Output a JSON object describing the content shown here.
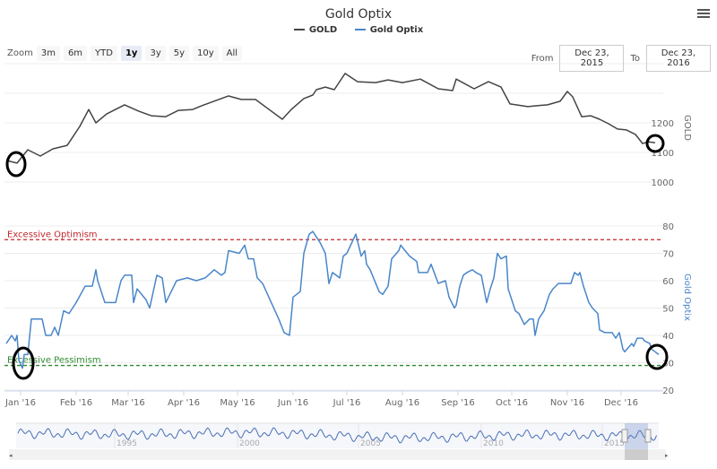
{
  "title": "Gold Optix",
  "legend": [
    {
      "name": "GOLD",
      "color": "#444444"
    },
    {
      "name": "Gold Optix",
      "color": "#4a86c8"
    }
  ],
  "toolbar": {
    "zoom_label": "Zoom",
    "zoom_buttons": [
      "3m",
      "6m",
      "YTD",
      "1y",
      "3y",
      "5y",
      "10y",
      "All"
    ],
    "selected": "1y",
    "from_label": "From",
    "from_value": "Dec 23, 2015",
    "to_label": "To",
    "to_value": "Dec 23, 2016",
    "menu_icon": "hamburger-menu-icon"
  },
  "chart_data": [
    {
      "type": "line",
      "title": "Gold Optix",
      "ylabel": "GOLD",
      "ylim": [
        1000,
        1400
      ],
      "yticks": [
        "1000",
        "1100",
        "1200"
      ],
      "grid": true,
      "series": [
        {
          "name": "GOLD",
          "color": "#444444",
          "points": [
            [
              "2015-12-24",
              1073
            ],
            [
              "2015-12-30",
              1064
            ],
            [
              "2016-01-05",
              1109
            ],
            [
              "2016-01-12",
              1088
            ],
            [
              "2016-01-19",
              1112
            ],
            [
              "2016-01-27",
              1124
            ],
            [
              "2016-02-03",
              1188
            ],
            [
              "2016-02-08",
              1245
            ],
            [
              "2016-02-12",
              1200
            ],
            [
              "2016-02-18",
              1230
            ],
            [
              "2016-02-28",
              1261
            ],
            [
              "2016-03-07",
              1239
            ],
            [
              "2016-03-14",
              1224
            ],
            [
              "2016-03-22",
              1221
            ],
            [
              "2016-03-29",
              1242
            ],
            [
              "2016-04-06",
              1245
            ],
            [
              "2016-04-11",
              1258
            ],
            [
              "2016-04-26",
              1291
            ],
            [
              "2016-05-03",
              1279
            ],
            [
              "2016-05-11",
              1279
            ],
            [
              "2016-05-18",
              1248
            ],
            [
              "2016-05-26",
              1212
            ],
            [
              "2016-05-31",
              1245
            ],
            [
              "2016-06-07",
              1282
            ],
            [
              "2016-06-12",
              1294
            ],
            [
              "2016-06-14",
              1312
            ],
            [
              "2016-06-19",
              1321
            ],
            [
              "2016-06-24",
              1312
            ],
            [
              "2016-06-30",
              1367
            ],
            [
              "2016-07-07",
              1339
            ],
            [
              "2016-07-17",
              1336
            ],
            [
              "2016-07-24",
              1345
            ],
            [
              "2016-08-01",
              1336
            ],
            [
              "2016-08-11",
              1348
            ],
            [
              "2016-08-21",
              1315
            ],
            [
              "2016-08-29",
              1309
            ],
            [
              "2016-08-31",
              1348
            ],
            [
              "2016-09-10",
              1315
            ],
            [
              "2016-09-18",
              1339
            ],
            [
              "2016-09-25",
              1321
            ],
            [
              "2016-09-30",
              1264
            ],
            [
              "2016-10-10",
              1255
            ],
            [
              "2016-10-15",
              1258
            ],
            [
              "2016-10-21",
              1261
            ],
            [
              "2016-10-28",
              1273
            ],
            [
              "2016-11-01",
              1306
            ],
            [
              "2016-11-04",
              1288
            ],
            [
              "2016-11-09",
              1221
            ],
            [
              "2016-11-14",
              1224
            ],
            [
              "2016-11-19",
              1212
            ],
            [
              "2016-11-24",
              1197
            ],
            [
              "2016-11-29",
              1179
            ],
            [
              "2016-12-04",
              1176
            ],
            [
              "2016-12-09",
              1161
            ],
            [
              "2016-12-13",
              1130
            ],
            [
              "2016-12-16",
              1136
            ],
            [
              "2016-12-20",
              1133
            ]
          ]
        }
      ]
    },
    {
      "type": "line",
      "ylabel": "Gold Optix",
      "ylim": [
        20,
        80
      ],
      "yticks": [
        "20",
        "30",
        "40",
        "50",
        "60",
        "70",
        "80"
      ],
      "grid": true,
      "xticks": [
        "Jan '16",
        "Feb '16",
        "Mar '16",
        "Apr '16",
        "May '16",
        "Jun '16",
        "Jul '16",
        "Aug '16",
        "Sep '16",
        "Oct '16",
        "Nov '16",
        "Dec '16"
      ],
      "xtick_dates": [
        "2016-01-01",
        "2016-02-01",
        "2016-03-01",
        "2016-04-01",
        "2016-05-01",
        "2016-06-01",
        "2016-07-01",
        "2016-08-01",
        "2016-09-01",
        "2016-10-01",
        "2016-11-01",
        "2016-12-01"
      ],
      "plot_lines": [
        {
          "label": "Excessive Optimism",
          "value": 75,
          "color": "#c0282d"
        },
        {
          "label": "Excessive Pessimism",
          "value": 29,
          "color": "#2e8b2e"
        }
      ],
      "series": [
        {
          "name": "Gold Optix",
          "color": "#4a86c8",
          "points": [
            [
              "2015-12-24",
              37
            ],
            [
              "2015-12-27",
              40
            ],
            [
              "2015-12-29",
              38
            ],
            [
              "2015-12-30",
              40
            ],
            [
              "2015-12-31",
              31
            ],
            [
              "2016-01-02",
              28
            ],
            [
              "2016-01-03",
              33
            ],
            [
              "2016-01-05",
              33
            ],
            [
              "2016-01-07",
              46
            ],
            [
              "2016-01-13",
              46
            ],
            [
              "2016-01-15",
              40
            ],
            [
              "2016-01-18",
              40
            ],
            [
              "2016-01-20",
              43
            ],
            [
              "2016-01-22",
              40
            ],
            [
              "2016-01-25",
              49
            ],
            [
              "2016-01-28",
              48
            ],
            [
              "2016-02-01",
              52
            ],
            [
              "2016-02-06",
              58
            ],
            [
              "2016-02-10",
              58
            ],
            [
              "2016-02-12",
              64
            ],
            [
              "2016-02-13",
              60
            ],
            [
              "2016-02-17",
              52
            ],
            [
              "2016-02-23",
              52
            ],
            [
              "2016-02-26",
              60
            ],
            [
              "2016-02-28",
              62
            ],
            [
              "2016-03-03",
              62
            ],
            [
              "2016-03-04",
              52
            ],
            [
              "2016-03-06",
              57
            ],
            [
              "2016-03-11",
              53
            ],
            [
              "2016-03-13",
              50
            ],
            [
              "2016-03-17",
              62
            ],
            [
              "2016-03-20",
              61
            ],
            [
              "2016-03-22",
              52
            ],
            [
              "2016-03-25",
              56
            ],
            [
              "2016-03-28",
              60
            ],
            [
              "2016-04-03",
              61
            ],
            [
              "2016-04-08",
              60
            ],
            [
              "2016-04-13",
              61
            ],
            [
              "2016-04-18",
              64
            ],
            [
              "2016-04-22",
              62
            ],
            [
              "2016-04-24",
              63
            ],
            [
              "2016-04-26",
              71
            ],
            [
              "2016-05-02",
              70
            ],
            [
              "2016-05-05",
              73
            ],
            [
              "2016-05-07",
              68
            ],
            [
              "2016-05-10",
              68
            ],
            [
              "2016-05-12",
              61
            ],
            [
              "2016-05-15",
              59
            ],
            [
              "2016-05-24",
              46
            ],
            [
              "2016-05-27",
              41
            ],
            [
              "2016-05-30",
              40
            ],
            [
              "2016-06-01",
              54
            ],
            [
              "2016-06-05",
              56
            ],
            [
              "2016-06-07",
              70
            ],
            [
              "2016-06-10",
              77
            ],
            [
              "2016-06-12",
              78
            ],
            [
              "2016-06-16",
              74
            ],
            [
              "2016-06-19",
              70
            ],
            [
              "2016-06-21",
              59
            ],
            [
              "2016-06-23",
              63
            ],
            [
              "2016-06-27",
              61
            ],
            [
              "2016-06-29",
              69
            ],
            [
              "2016-07-01",
              70
            ],
            [
              "2016-07-06",
              77
            ],
            [
              "2016-07-09",
              69
            ],
            [
              "2016-07-11",
              71
            ],
            [
              "2016-07-12",
              66
            ],
            [
              "2016-07-14",
              64
            ],
            [
              "2016-07-19",
              56
            ],
            [
              "2016-07-21",
              55
            ],
            [
              "2016-07-24",
              58
            ],
            [
              "2016-07-26",
              68
            ],
            [
              "2016-07-30",
              71
            ],
            [
              "2016-07-31",
              73
            ],
            [
              "2016-08-05",
              69
            ],
            [
              "2016-08-09",
              67
            ],
            [
              "2016-08-10",
              63
            ],
            [
              "2016-08-15",
              63
            ],
            [
              "2016-08-17",
              66
            ],
            [
              "2016-08-21",
              59
            ],
            [
              "2016-08-25",
              60
            ],
            [
              "2016-08-27",
              54
            ],
            [
              "2016-08-30",
              50
            ],
            [
              "2016-08-31",
              51
            ],
            [
              "2016-09-02",
              58
            ],
            [
              "2016-09-04",
              62
            ],
            [
              "2016-09-06",
              63
            ],
            [
              "2016-09-09",
              64
            ],
            [
              "2016-09-11",
              63
            ],
            [
              "2016-09-14",
              62
            ],
            [
              "2016-09-17",
              52
            ],
            [
              "2016-09-19",
              57
            ],
            [
              "2016-09-21",
              61
            ],
            [
              "2016-09-23",
              70
            ],
            [
              "2016-09-25",
              68
            ],
            [
              "2016-09-28",
              69
            ],
            [
              "2016-09-29",
              57
            ],
            [
              "2016-10-03",
              49
            ],
            [
              "2016-10-05",
              48
            ],
            [
              "2016-10-08",
              44
            ],
            [
              "2016-10-11",
              46
            ],
            [
              "2016-10-13",
              46
            ],
            [
              "2016-10-14",
              40
            ],
            [
              "2016-10-16",
              46
            ],
            [
              "2016-10-19",
              49
            ],
            [
              "2016-10-22",
              55
            ],
            [
              "2016-10-24",
              57
            ],
            [
              "2016-10-27",
              59
            ],
            [
              "2016-11-03",
              59
            ],
            [
              "2016-11-05",
              63
            ],
            [
              "2016-11-07",
              62
            ],
            [
              "2016-11-08",
              63
            ],
            [
              "2016-11-10",
              58
            ],
            [
              "2016-11-13",
              52
            ],
            [
              "2016-11-15",
              50
            ],
            [
              "2016-11-18",
              48
            ],
            [
              "2016-11-19",
              42
            ],
            [
              "2016-11-22",
              41
            ],
            [
              "2016-11-26",
              41
            ],
            [
              "2016-11-28",
              39
            ],
            [
              "2016-11-30",
              41
            ],
            [
              "2016-12-02",
              35
            ],
            [
              "2016-12-03",
              34
            ],
            [
              "2016-12-07",
              37
            ],
            [
              "2016-12-08",
              36
            ],
            [
              "2016-12-10",
              39
            ],
            [
              "2016-12-13",
              39
            ],
            [
              "2016-12-14",
              38
            ],
            [
              "2016-12-17",
              37
            ],
            [
              "2016-12-18",
              35
            ],
            [
              "2016-12-20",
              34
            ],
            [
              "2016-12-22",
              33
            ]
          ]
        }
      ]
    }
  ],
  "navigator": {
    "labels": [
      "1995",
      "2000",
      "2005",
      "2010",
      "2015"
    ],
    "color": "#4a6fb5"
  }
}
